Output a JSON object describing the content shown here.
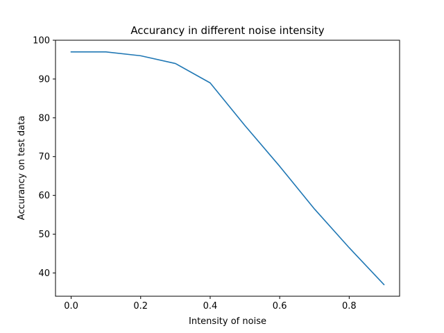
{
  "chart_data": {
    "type": "line",
    "title": "Accurancy in different noise intensity",
    "xlabel": "Intensity of noise",
    "ylabel": "Accurancy on test data",
    "xlim": [
      -0.045,
      0.945
    ],
    "ylim": [
      34,
      100
    ],
    "xticks": [
      0.0,
      0.2,
      0.4,
      0.6,
      0.8
    ],
    "xtick_labels": [
      "0.0",
      "0.2",
      "0.4",
      "0.6",
      "0.8"
    ],
    "yticks": [
      40,
      50,
      60,
      70,
      80,
      90,
      100
    ],
    "ytick_labels": [
      "40",
      "50",
      "60",
      "70",
      "80",
      "90",
      "100"
    ],
    "grid": false,
    "series": [
      {
        "x": [
          0.0,
          0.1,
          0.2,
          0.3,
          0.4,
          0.5,
          0.6,
          0.7,
          0.8,
          0.9
        ],
        "values": [
          97,
          97,
          96,
          94,
          89,
          78,
          67.5,
          56.5,
          46.5,
          37
        ],
        "color": "#1f77b4"
      }
    ]
  }
}
